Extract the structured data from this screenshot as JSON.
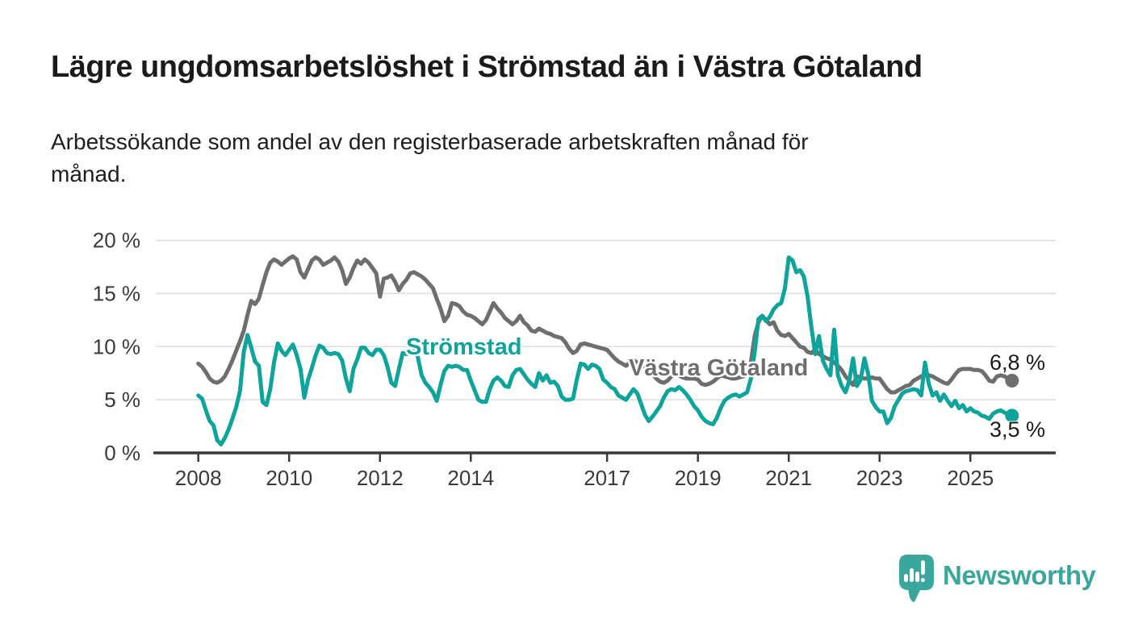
{
  "header": {
    "title": "Lägre ungdomsarbetslöshet i Strömstad än i Västra Götaland",
    "subtitle_lines": [
      "Arbetssökande som andel av den registerbaserade arbetskraften månad för",
      "månad."
    ]
  },
  "chart_data": {
    "type": "line",
    "unit": "percent",
    "frequency": "monthly",
    "x_start": "2008-01",
    "x_end": "2025-12",
    "ylim": [
      0,
      20
    ],
    "grid": "horizontal",
    "y_ticks": [
      {
        "value": 0,
        "label": "0 %"
      },
      {
        "value": 5,
        "label": "5 %"
      },
      {
        "value": 10,
        "label": "10 %"
      },
      {
        "value": 15,
        "label": "15 %"
      },
      {
        "value": 20,
        "label": "20 %"
      }
    ],
    "x_ticks": [
      {
        "year": 2008,
        "label": "2008"
      },
      {
        "year": 2010,
        "label": "2010"
      },
      {
        "year": 2012,
        "label": "2012"
      },
      {
        "year": 2014,
        "label": "2014"
      },
      {
        "year": 2017,
        "label": "2017"
      },
      {
        "year": 2019,
        "label": "2019"
      },
      {
        "year": 2021,
        "label": "2021"
      },
      {
        "year": 2023,
        "label": "2023"
      },
      {
        "year": 2025,
        "label": "2025"
      }
    ],
    "series": [
      {
        "name": "Västra Götaland",
        "color": "#6E6E6E",
        "end_label": "6,8 %",
        "end_value": 6.8,
        "values": [
          8.4,
          8.1,
          7.6,
          7.0,
          6.7,
          6.6,
          6.8,
          7.2,
          7.9,
          8.7,
          9.6,
          10.5,
          11.5,
          13.0,
          14.3,
          14.0,
          14.5,
          15.8,
          17.0,
          17.9,
          18.2,
          18.0,
          17.7,
          18.0,
          18.3,
          18.5,
          18.2,
          17.0,
          16.5,
          17.3,
          18.1,
          18.4,
          18.2,
          17.7,
          17.9,
          18.1,
          18.4,
          18.0,
          17.2,
          15.9,
          16.5,
          17.4,
          18.1,
          17.8,
          18.2,
          17.9,
          17.4,
          16.9,
          14.7,
          16.4,
          16.5,
          16.7,
          16.1,
          15.3,
          15.9,
          16.3,
          16.9,
          17.0,
          16.8,
          16.6,
          16.3,
          15.9,
          15.5,
          14.5,
          13.6,
          12.4,
          12.9,
          14.1,
          14.0,
          13.8,
          13.3,
          13.0,
          12.9,
          12.7,
          12.4,
          12.1,
          12.5,
          13.3,
          14.1,
          13.6,
          13.2,
          12.7,
          12.4,
          12.1,
          12.4,
          12.9,
          12.3,
          12.0,
          11.5,
          11.4,
          11.7,
          11.5,
          11.3,
          11.2,
          11.0,
          10.9,
          10.8,
          10.4,
          9.8,
          9.4,
          9.6,
          10.2,
          10.3,
          10.2,
          10.1,
          10.0,
          9.9,
          9.8,
          9.7,
          9.3,
          8.9,
          8.6,
          8.4,
          8.2,
          8.5,
          8.7,
          8.5,
          8.3,
          8.1,
          7.8,
          7.4,
          7.0,
          6.7,
          6.6,
          6.8,
          7.2,
          7.5,
          7.3,
          7.1,
          7.0,
          7.0,
          7.0,
          6.9,
          6.5,
          6.4,
          6.5,
          6.7,
          7.0,
          7.3,
          7.2,
          7.1,
          7.0,
          7.0,
          7.1,
          7.2,
          7.4,
          8.5,
          11.0,
          12.3,
          12.9,
          12.5,
          12.1,
          12.3,
          11.5,
          11.1,
          11.0,
          11.2,
          10.8,
          10.4,
          10.0,
          9.9,
          9.5,
          9.4,
          9.7,
          9.3,
          9.1,
          8.9,
          8.8,
          8.5,
          8.2,
          7.8,
          7.2,
          6.8,
          6.4,
          7.2,
          7.1,
          7.0,
          7.0,
          7.1,
          7.0,
          7.0,
          6.5,
          6.0,
          5.7,
          5.7,
          5.9,
          6.1,
          6.3,
          6.4,
          6.8,
          7.0,
          7.2,
          7.4,
          7.3,
          7.2,
          7.0,
          6.8,
          6.6,
          6.5,
          6.9,
          7.4,
          7.8,
          7.9,
          7.9,
          7.9,
          7.8,
          7.8,
          7.7,
          7.3,
          6.8,
          6.7,
          7.2,
          7.3,
          7.2,
          7.0,
          6.8
        ]
      },
      {
        "name": "Strömstad",
        "color": "#0FA49B",
        "end_label": "3,5 %",
        "end_value": 3.5,
        "values": [
          5.4,
          5.1,
          4.0,
          3.0,
          2.6,
          1.2,
          0.8,
          1.4,
          2.2,
          3.2,
          4.3,
          5.8,
          9.5,
          11.1,
          9.9,
          8.6,
          8.2,
          4.8,
          4.5,
          6.0,
          8.5,
          10.3,
          9.6,
          9.2,
          9.7,
          10.2,
          9.2,
          7.9,
          5.2,
          6.9,
          8.0,
          9.2,
          10.1,
          9.9,
          9.4,
          9.3,
          9.4,
          9.3,
          8.7,
          7.0,
          5.8,
          7.9,
          8.8,
          9.9,
          9.9,
          9.4,
          9.2,
          9.7,
          9.7,
          9.2,
          8.1,
          6.6,
          6.3,
          7.9,
          9.4,
          9.3,
          9.4,
          9.9,
          9.0,
          7.3,
          6.6,
          6.2,
          5.7,
          4.9,
          6.4,
          7.7,
          8.2,
          8.1,
          8.2,
          8.1,
          7.8,
          7.8,
          6.8,
          5.9,
          5.0,
          4.8,
          4.8,
          6.0,
          6.8,
          7.1,
          6.8,
          6.3,
          6.2,
          7.3,
          7.8,
          7.9,
          7.4,
          6.9,
          6.5,
          6.2,
          7.5,
          6.8,
          7.3,
          6.6,
          6.7,
          6.3,
          5.3,
          5.0,
          5.0,
          5.1,
          6.9,
          8.4,
          8.3,
          7.9,
          8.3,
          8.2,
          7.9,
          6.9,
          6.6,
          6.2,
          6.0,
          5.4,
          5.2,
          5.0,
          5.5,
          6.0,
          5.6,
          4.6,
          3.6,
          3.0,
          3.4,
          3.9,
          4.4,
          5.2,
          5.8,
          6.0,
          5.9,
          6.2,
          5.9,
          5.5,
          5.0,
          4.4,
          4.0,
          3.4,
          3.0,
          2.8,
          2.7,
          3.3,
          4.2,
          4.9,
          5.2,
          5.4,
          5.5,
          5.3,
          5.5,
          5.7,
          7.0,
          9.5,
          12.6,
          12.9,
          12.4,
          12.8,
          13.5,
          13.9,
          14.1,
          15.5,
          18.4,
          18.1,
          17.0,
          17.2,
          16.6,
          14.7,
          11.8,
          9.3,
          11.0,
          8.7,
          7.9,
          7.3,
          11.6,
          7.3,
          6.3,
          5.7,
          6.8,
          8.9,
          6.3,
          6.9,
          8.9,
          7.4,
          4.9,
          4.3,
          3.9,
          3.9,
          2.8,
          3.3,
          4.4,
          5.0,
          5.6,
          5.8,
          5.9,
          6.0,
          5.9,
          5.4,
          8.5,
          6.5,
          5.4,
          5.7,
          4.9,
          5.5,
          4.9,
          4.4,
          4.9,
          4.2,
          4.5,
          3.9,
          4.2,
          3.9,
          3.8,
          3.5,
          3.4,
          3.2,
          3.7,
          3.9,
          4.0,
          3.8,
          3.6,
          3.5
        ]
      }
    ]
  },
  "branding": {
    "logo_text": "Newsworthy",
    "logo_color": "#3BA79C"
  }
}
